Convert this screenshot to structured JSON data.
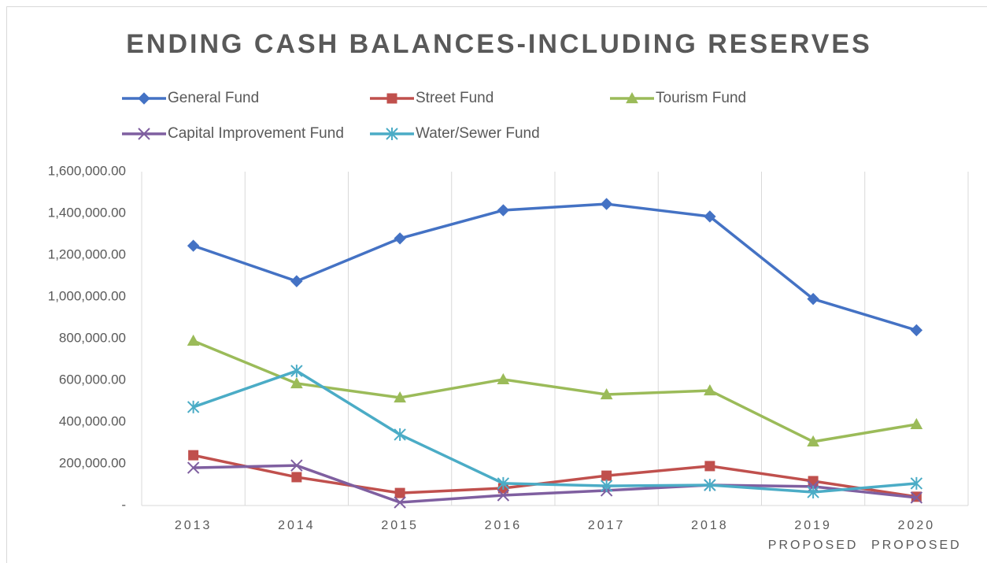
{
  "chart_data": {
    "type": "line",
    "title": "ENDING CASH BALANCES-INCLUDING RESERVES",
    "categories": [
      "2013",
      "2014",
      "2015",
      "2016",
      "2017",
      "2018",
      "2019 PROPOSED",
      "2020 PROPOSED"
    ],
    "series": [
      {
        "name": "General Fund",
        "color": "#4472c4",
        "marker": "diamond",
        "values": [
          1245000,
          1075000,
          1280000,
          1415000,
          1445000,
          1385000,
          990000,
          840000
        ]
      },
      {
        "name": "Street Fund",
        "color": "#c0504d",
        "marker": "square",
        "values": [
          241000,
          136000,
          60000,
          83000,
          143000,
          189000,
          117000,
          42000
        ]
      },
      {
        "name": "Tourism Fund",
        "color": "#9bbb59",
        "marker": "triangle",
        "values": [
          789000,
          585000,
          517000,
          604000,
          532000,
          551000,
          306000,
          389000
        ]
      },
      {
        "name": "Capital Improvement Fund",
        "color": "#7f5fa0",
        "marker": "x",
        "values": [
          181000,
          192000,
          15000,
          49000,
          72000,
          98000,
          91000,
          38000
        ]
      },
      {
        "name": "Water/Sewer Fund",
        "color": "#4bacc6",
        "marker": "star",
        "values": [
          472000,
          645000,
          340000,
          106000,
          94000,
          98000,
          64000,
          106000
        ]
      }
    ],
    "ylim": [
      0,
      1600000
    ],
    "yticks": [
      {
        "value": 0,
        "label": "-"
      },
      {
        "value": 200000,
        "label": "200,000.00"
      },
      {
        "value": 400000,
        "label": "400,000.00"
      },
      {
        "value": 600000,
        "label": "600,000.00"
      },
      {
        "value": 800000,
        "label": "800,000.00"
      },
      {
        "value": 1000000,
        "label": "1,000,000.00"
      },
      {
        "value": 1200000,
        "label": "1,200,000.00"
      },
      {
        "value": 1400000,
        "label": "1,400,000.00"
      },
      {
        "value": 1600000,
        "label": "1,600,000.00"
      }
    ],
    "grid": "vertical",
    "legend": "top"
  }
}
